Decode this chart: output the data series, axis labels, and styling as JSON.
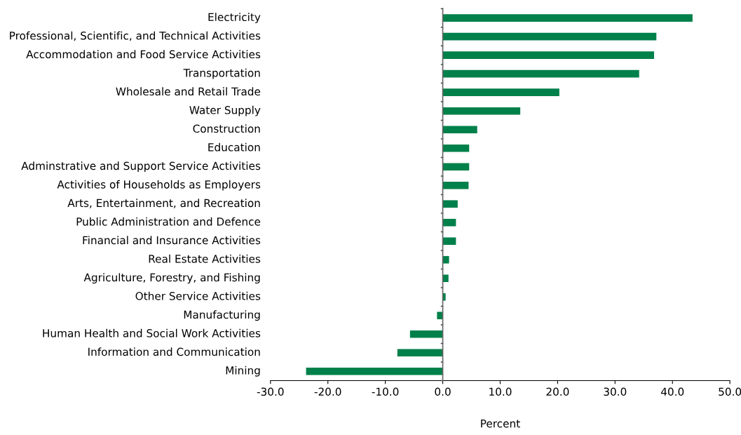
{
  "chart_data": {
    "type": "bar",
    "orientation": "horizontal",
    "xlabel": "Percent",
    "categories": [
      "Electricity",
      "Professional, Scientific, and Technical Activities",
      "Accommodation and Food Service Activities",
      "Transportation",
      "Wholesale and Retail Trade",
      "Water Supply",
      "Construction",
      "Education",
      "Adminstrative and Support Service Activities",
      "Activities of Households as Employers",
      "Arts, Entertainment, and Recreation",
      "Public Administration and Defence",
      "Financial and Insurance Activities",
      "Real Estate Activities",
      "Agriculture, Forestry, and Fishing",
      "Other Service Activities",
      "Manufacturing",
      "Human Health and Social Work Activities",
      "Information and Communication",
      "Mining"
    ],
    "values": [
      43.5,
      37.2,
      36.8,
      34.2,
      20.3,
      13.5,
      6.0,
      4.6,
      4.6,
      4.5,
      2.6,
      2.3,
      2.3,
      1.1,
      1.0,
      0.5,
      -1.0,
      -5.7,
      -7.9,
      -23.8
    ],
    "color": "#00804a",
    "xlim": [
      -30,
      50
    ],
    "xticks": [
      {
        "value": -30,
        "label": "-30.0"
      },
      {
        "value": -20,
        "label": "-20.0"
      },
      {
        "value": -10,
        "label": "-10.0"
      },
      {
        "value": 0,
        "label": "0.0"
      },
      {
        "value": 10,
        "label": "10.0"
      },
      {
        "value": 20,
        "label": "20.0"
      },
      {
        "value": 30,
        "label": "30.0"
      },
      {
        "value": 40,
        "label": "40.0"
      },
      {
        "value": 50,
        "label": "50.0"
      }
    ],
    "legend": false
  }
}
